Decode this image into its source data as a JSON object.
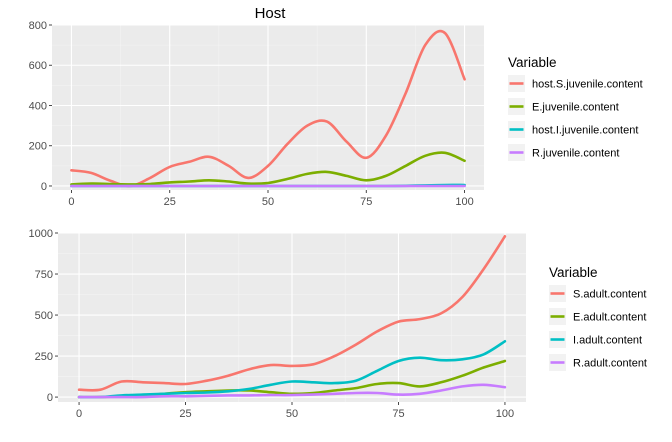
{
  "chart_data": [
    {
      "type": "line",
      "title": "Host",
      "xlabel": "",
      "ylabel": "",
      "xlim": [
        0,
        100
      ],
      "ylim": [
        -20,
        800
      ],
      "x_ticks": [
        0,
        25,
        50,
        75,
        100
      ],
      "y_ticks": [
        0,
        200,
        400,
        600,
        800
      ],
      "grid": true,
      "legend": {
        "title": "Variable",
        "placement": "right"
      },
      "x": [
        0,
        5,
        10,
        15,
        20,
        25,
        30,
        35,
        40,
        45,
        50,
        55,
        60,
        65,
        70,
        75,
        80,
        85,
        90,
        95,
        100
      ],
      "series": [
        {
          "name": "host.S.juvenile.content",
          "color": "#F8766D",
          "values": [
            78,
            65,
            25,
            0,
            40,
            95,
            120,
            145,
            100,
            40,
            100,
            210,
            300,
            320,
            220,
            140,
            250,
            460,
            700,
            760,
            530
          ]
        },
        {
          "name": "E.juvenile.content",
          "color": "#7CAE00",
          "values": [
            8,
            12,
            10,
            8,
            10,
            18,
            22,
            28,
            22,
            12,
            15,
            35,
            60,
            70,
            50,
            28,
            50,
            100,
            150,
            165,
            125
          ]
        },
        {
          "name": "host.I.juvenile.content",
          "color": "#00BFC4",
          "values": [
            0,
            0,
            0,
            0,
            0,
            0,
            0,
            0,
            0,
            0,
            0,
            0,
            0,
            0,
            0,
            0,
            0,
            1,
            3,
            5,
            5
          ]
        },
        {
          "name": "R.juvenile.content",
          "color": "#C77CFF",
          "values": [
            0,
            0,
            0,
            0,
            0,
            0,
            0,
            0,
            0,
            0,
            0,
            0,
            0,
            0,
            0,
            0,
            0,
            0,
            0,
            0,
            0
          ]
        }
      ]
    },
    {
      "type": "line",
      "title": "",
      "xlabel": "",
      "ylabel": "",
      "xlim": [
        0,
        100
      ],
      "ylim": [
        -30,
        1000
      ],
      "x_ticks": [
        0,
        25,
        50,
        75,
        100
      ],
      "y_ticks": [
        0,
        250,
        500,
        750,
        1000
      ],
      "grid": true,
      "legend": {
        "title": "Variable",
        "placement": "right"
      },
      "x": [
        0,
        5,
        10,
        15,
        20,
        25,
        30,
        35,
        40,
        45,
        50,
        55,
        60,
        65,
        70,
        75,
        80,
        85,
        90,
        95,
        100
      ],
      "series": [
        {
          "name": "S.adult.content",
          "color": "#F8766D",
          "values": [
            45,
            45,
            95,
            90,
            85,
            80,
            100,
            130,
            170,
            195,
            190,
            200,
            250,
            320,
            400,
            460,
            475,
            510,
            610,
            780,
            980
          ]
        },
        {
          "name": "E.adult.content",
          "color": "#7CAE00",
          "values": [
            0,
            0,
            5,
            10,
            20,
            30,
            35,
            40,
            40,
            30,
            20,
            25,
            40,
            55,
            80,
            85,
            65,
            90,
            130,
            180,
            220
          ]
        },
        {
          "name": "I.adult.content",
          "color": "#00BFC4",
          "values": [
            0,
            0,
            10,
            15,
            20,
            25,
            28,
            35,
            50,
            75,
            95,
            90,
            85,
            100,
            160,
            220,
            240,
            225,
            230,
            260,
            340
          ]
        },
        {
          "name": "R.adult.content",
          "color": "#C77CFF",
          "values": [
            0,
            0,
            0,
            0,
            5,
            5,
            8,
            10,
            10,
            12,
            12,
            15,
            20,
            25,
            25,
            15,
            20,
            40,
            65,
            75,
            60
          ]
        }
      ]
    }
  ]
}
